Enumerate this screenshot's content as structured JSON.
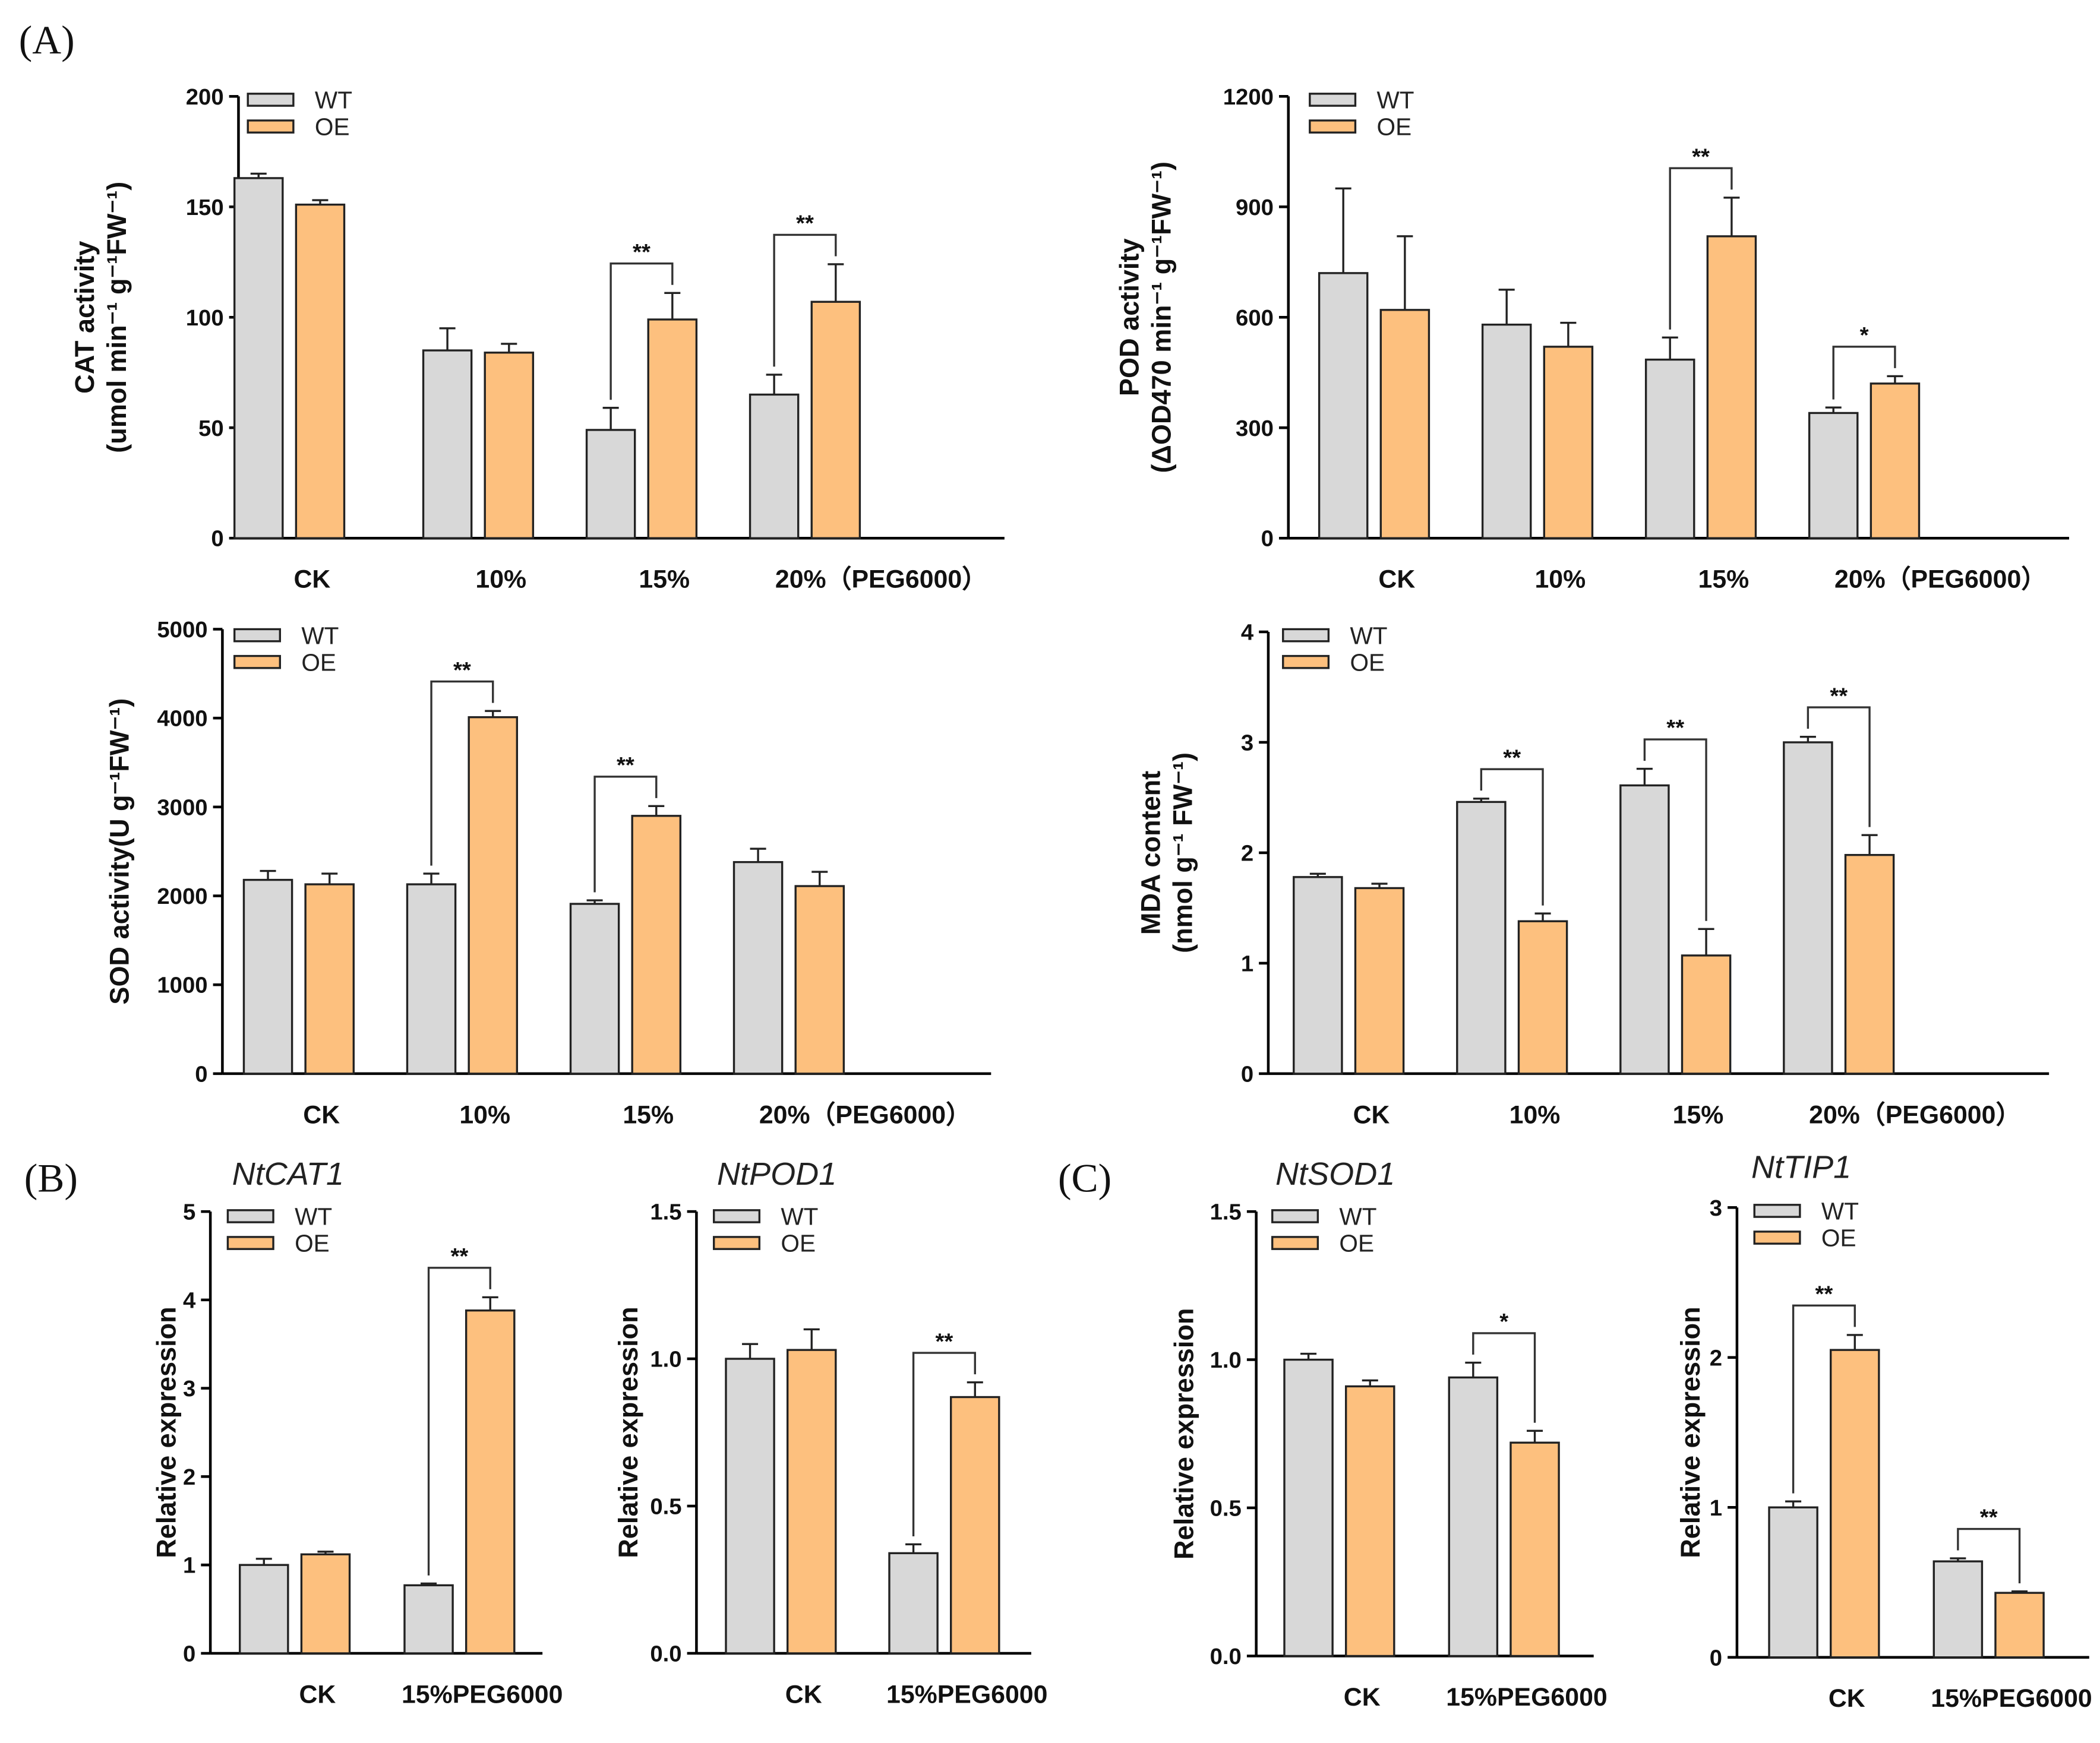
{
  "panel_labels": [
    "(A)",
    "(B)",
    "(C)"
  ],
  "colors": {
    "WT": "#d8d8d8",
    "OE": "#fdc07e",
    "stroke": "#222222"
  },
  "chart_data": [
    {
      "type": "bar",
      "title": "",
      "ylabel": [
        "CAT activity",
        "(umol min⁻¹ g⁻¹FW⁻¹)"
      ],
      "ylim": [
        0,
        200
      ],
      "yticks": [
        "0",
        "50",
        "100",
        "150",
        "200"
      ],
      "categories": [
        "CK",
        "10%",
        "15%",
        "20%（PEG6000）"
      ],
      "legend": [
        "WT",
        "OE"
      ],
      "series": [
        {
          "name": "WT",
          "values": [
            163,
            85,
            49,
            65
          ],
          "errors": [
            2,
            10,
            10,
            9
          ]
        },
        {
          "name": "OE",
          "values": [
            151,
            84,
            99,
            107
          ],
          "errors": [
            2,
            4,
            12,
            17
          ]
        }
      ],
      "significance": [
        {
          "category": "15%",
          "label": "**"
        },
        {
          "category": "20%",
          "label": "**"
        }
      ]
    },
    {
      "type": "bar",
      "title": "",
      "ylabel": [
        "POD activity",
        "(ΔOD470 min⁻¹ g⁻¹FW⁻¹)"
      ],
      "ylim": [
        0,
        1200
      ],
      "yticks": [
        "0",
        "300",
        "600",
        "900",
        "1200"
      ],
      "categories": [
        "CK",
        "10%",
        "15%",
        "20%（PEG6000）"
      ],
      "legend": [
        "WT",
        "OE"
      ],
      "series": [
        {
          "name": "WT",
          "values": [
            720,
            580,
            485,
            340
          ],
          "errors": [
            230,
            95,
            60,
            15
          ]
        },
        {
          "name": "OE",
          "values": [
            620,
            520,
            820,
            420
          ],
          "errors": [
            200,
            65,
            105,
            20
          ]
        }
      ],
      "significance": [
        {
          "category": "15%",
          "label": "**"
        },
        {
          "category": "20%",
          "label": "*"
        }
      ]
    },
    {
      "type": "bar",
      "title": "",
      "ylabel": [
        "SOD activity(U g⁻¹FW⁻¹)"
      ],
      "ylim": [
        0,
        5000
      ],
      "yticks": [
        "0",
        "1000",
        "2000",
        "3000",
        "4000",
        "5000"
      ],
      "categories": [
        "CK",
        "10%",
        "15%",
        "20%（PEG6000）"
      ],
      "legend": [
        "WT",
        "OE"
      ],
      "series": [
        {
          "name": "WT",
          "values": [
            2180,
            2130,
            1910,
            2380
          ],
          "errors": [
            100,
            120,
            40,
            150
          ]
        },
        {
          "name": "OE",
          "values": [
            2130,
            4010,
            2900,
            2110
          ],
          "errors": [
            120,
            70,
            110,
            160
          ]
        }
      ],
      "significance": [
        {
          "category": "10%",
          "label": "**"
        },
        {
          "category": "15%",
          "label": "**"
        }
      ]
    },
    {
      "type": "bar",
      "title": "",
      "ylabel": [
        "MDA content",
        "(nmol g⁻¹ FW⁻¹)"
      ],
      "ylim": [
        0,
        4
      ],
      "yticks": [
        "0",
        "1",
        "2",
        "3",
        "4"
      ],
      "categories": [
        "CK",
        "10%",
        "15%",
        "20%（PEG6000）"
      ],
      "legend": [
        "WT",
        "OE"
      ],
      "series": [
        {
          "name": "WT",
          "values": [
            1.78,
            2.46,
            2.61,
            3.0
          ],
          "errors": [
            0.03,
            0.03,
            0.15,
            0.05
          ]
        },
        {
          "name": "OE",
          "values": [
            1.68,
            1.38,
            1.07,
            1.98
          ],
          "errors": [
            0.04,
            0.07,
            0.24,
            0.18
          ]
        }
      ],
      "significance": [
        {
          "category": "10%",
          "label": "**"
        },
        {
          "category": "15%",
          "label": "**"
        },
        {
          "category": "20%",
          "label": "**"
        }
      ]
    },
    {
      "type": "bar",
      "title": "NtCAT1",
      "ylabel": [
        "Relative expression"
      ],
      "ylim": [
        0,
        5
      ],
      "yticks": [
        "0",
        "1",
        "2",
        "3",
        "4",
        "5"
      ],
      "categories": [
        "CK",
        "15%PEG6000"
      ],
      "legend": [
        "WT",
        "OE"
      ],
      "series": [
        {
          "name": "WT",
          "values": [
            1.0,
            0.77
          ],
          "errors": [
            0.07,
            0.02
          ]
        },
        {
          "name": "OE",
          "values": [
            1.12,
            3.88
          ],
          "errors": [
            0.03,
            0.15
          ]
        }
      ],
      "significance": [
        {
          "category": "15%PEG6000",
          "label": "**"
        }
      ]
    },
    {
      "type": "bar",
      "title": "NtPOD1",
      "ylabel": [
        "Relative expression"
      ],
      "ylim": [
        0,
        1.5
      ],
      "yticks": [
        "0.0",
        "0.5",
        "1.0",
        "1.5"
      ],
      "categories": [
        "CK",
        "15%PEG6000"
      ],
      "legend": [
        "WT",
        "OE"
      ],
      "series": [
        {
          "name": "WT",
          "values": [
            1.0,
            0.34
          ],
          "errors": [
            0.05,
            0.03
          ]
        },
        {
          "name": "OE",
          "values": [
            1.03,
            0.87
          ],
          "errors": [
            0.07,
            0.05
          ]
        }
      ],
      "significance": [
        {
          "category": "15%PEG6000",
          "label": "**"
        }
      ]
    },
    {
      "type": "bar",
      "title": "NtSOD1",
      "ylabel": [
        "Relative expression"
      ],
      "ylim": [
        0,
        1.5
      ],
      "yticks": [
        "0.0",
        "0.5",
        "1.0",
        "1.5"
      ],
      "categories": [
        "CK",
        "15%PEG6000"
      ],
      "legend": [
        "WT",
        "OE"
      ],
      "series": [
        {
          "name": "WT",
          "values": [
            1.0,
            0.94
          ],
          "errors": [
            0.02,
            0.05
          ]
        },
        {
          "name": "OE",
          "values": [
            0.91,
            0.72
          ],
          "errors": [
            0.02,
            0.04
          ]
        }
      ],
      "significance": [
        {
          "category": "15%PEG6000",
          "label": "*"
        }
      ]
    },
    {
      "type": "bar",
      "title": "NtTIP1",
      "ylabel": [
        "Relative expression"
      ],
      "ylim": [
        0,
        3
      ],
      "yticks": [
        "0",
        "1",
        "2",
        "3"
      ],
      "categories": [
        "CK",
        "15%PEG6000"
      ],
      "legend": [
        "WT",
        "OE"
      ],
      "series": [
        {
          "name": "WT",
          "values": [
            1.0,
            0.64
          ],
          "errors": [
            0.04,
            0.02
          ]
        },
        {
          "name": "OE",
          "values": [
            2.05,
            0.43
          ],
          "errors": [
            0.1,
            0.01
          ]
        }
      ],
      "significance": [
        {
          "category": "CK",
          "label": "**"
        },
        {
          "category": "15%PEG6000",
          "label": "**"
        }
      ]
    }
  ]
}
